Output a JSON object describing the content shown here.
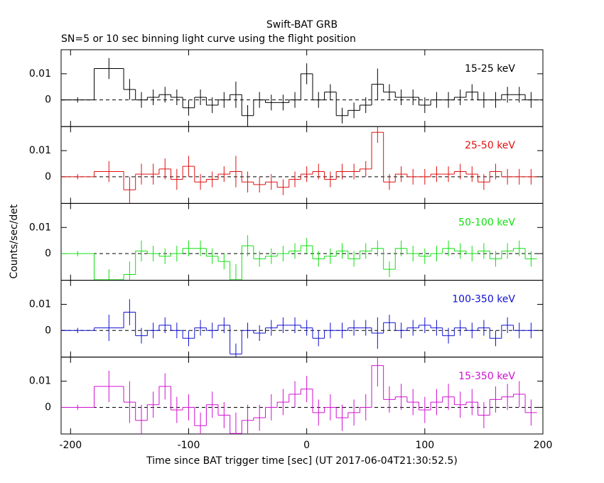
{
  "chart_data": [
    {
      "type": "histogram",
      "title": "Swift-BAT GRB",
      "subtitle": "SN=5 or 10 sec binning light curve using the flight position",
      "name": "15-25 keV",
      "color": "#000000",
      "bins": [
        -208,
        -180,
        -155,
        -145,
        -135,
        -125,
        -115,
        -105,
        -95,
        -85,
        -75,
        -65,
        -55,
        -45,
        -35,
        -25,
        -15,
        -5,
        5,
        15,
        25,
        35,
        45,
        55,
        65,
        75,
        85,
        95,
        105,
        115,
        125,
        135,
        145,
        155,
        165,
        175,
        185,
        195
      ],
      "values": [
        0,
        0.012,
        0.004,
        0,
        0.001,
        0.002,
        0.001,
        -0.003,
        0.001,
        -0.002,
        0,
        0.002,
        -0.006,
        0,
        -0.001,
        -0.001,
        0,
        0.01,
        0,
        0.003,
        -0.006,
        -0.004,
        -0.002,
        0.006,
        0.003,
        0.001,
        0.001,
        -0.002,
        0,
        0,
        0.001,
        0.003,
        0,
        0,
        0.002,
        0.002,
        0
      ],
      "errors": [
        0.001,
        0.004,
        0.004,
        0.003,
        0.003,
        0.003,
        0.003,
        0.003,
        0.003,
        0.003,
        0.003,
        0.005,
        0.004,
        0.003,
        0.003,
        0.003,
        0.003,
        0.004,
        0.003,
        0.003,
        0.003,
        0.003,
        0.003,
        0.006,
        0.003,
        0.003,
        0.003,
        0.003,
        0.003,
        0.003,
        0.003,
        0.003,
        0.003,
        0.003,
        0.003,
        0.003,
        0.003
      ],
      "xlim": [
        -208,
        200
      ],
      "xticks": [
        -200,
        -100,
        0,
        100,
        200
      ],
      "ylim": [
        -0.0102,
        0.0192
      ],
      "yticks": [
        0,
        0.01
      ]
    },
    {
      "type": "histogram",
      "name": "25-50 keV",
      "color": "#e01010",
      "bins": [
        -208,
        -180,
        -155,
        -145,
        -135,
        -125,
        -115,
        -105,
        -95,
        -85,
        -75,
        -65,
        -55,
        -45,
        -35,
        -25,
        -15,
        -5,
        5,
        15,
        25,
        35,
        45,
        55,
        65,
        75,
        85,
        95,
        105,
        115,
        125,
        135,
        145,
        155,
        165,
        175,
        185,
        195
      ],
      "values": [
        0,
        0.002,
        -0.005,
        0.001,
        0.001,
        0.003,
        -0.001,
        0.004,
        -0.002,
        -0.001,
        0.001,
        0.002,
        -0.002,
        -0.003,
        -0.002,
        -0.004,
        -0.001,
        0.001,
        0.002,
        -0.001,
        0.002,
        0.002,
        0.003,
        0.017,
        -0.002,
        0.001,
        0,
        0,
        0.001,
        0.001,
        0.002,
        0.001,
        -0.002,
        0.002,
        0,
        0,
        0
      ],
      "errors": [
        0.001,
        0.004,
        0.005,
        0.004,
        0.004,
        0.004,
        0.004,
        0.004,
        0.003,
        0.003,
        0.003,
        0.006,
        0.004,
        0.003,
        0.003,
        0.003,
        0.003,
        0.003,
        0.003,
        0.003,
        0.003,
        0.003,
        0.003,
        0.004,
        0.003,
        0.003,
        0.003,
        0.003,
        0.003,
        0.003,
        0.003,
        0.003,
        0.003,
        0.003,
        0.003,
        0.003,
        0.003
      ],
      "xlim": [
        -208,
        200
      ],
      "xticks": [
        -200,
        -100,
        0,
        100,
        200
      ],
      "ylim": [
        -0.0102,
        0.0192
      ],
      "yticks": [
        0,
        0.01
      ]
    },
    {
      "type": "histogram",
      "name": "50-100 keV",
      "ylabel": "Counts/sec/det",
      "color": "#10e010",
      "bins": [
        -208,
        -180,
        -155,
        -145,
        -135,
        -125,
        -115,
        -105,
        -95,
        -85,
        -75,
        -65,
        -55,
        -45,
        -35,
        -25,
        -15,
        -5,
        5,
        15,
        25,
        35,
        45,
        55,
        65,
        75,
        85,
        95,
        105,
        115,
        125,
        135,
        145,
        155,
        165,
        175,
        185,
        195
      ],
      "values": [
        0,
        -0.01,
        -0.008,
        0.001,
        0,
        -0.001,
        0,
        0.002,
        0.002,
        -0.001,
        -0.003,
        -0.01,
        0.003,
        -0.002,
        -0.001,
        0,
        0.001,
        0.003,
        -0.002,
        -0.001,
        0.001,
        -0.002,
        0.001,
        0.002,
        -0.006,
        0.002,
        0,
        -0.001,
        0,
        0.002,
        0.001,
        0,
        0.001,
        -0.002,
        0.001,
        0.002,
        -0.002
      ],
      "errors": [
        0.001,
        0.004,
        0.005,
        0.004,
        0.003,
        0.003,
        0.003,
        0.003,
        0.003,
        0.003,
        0.003,
        0.006,
        0.004,
        0.003,
        0.003,
        0.003,
        0.003,
        0.003,
        0.003,
        0.003,
        0.003,
        0.003,
        0.003,
        0.003,
        0.003,
        0.003,
        0.003,
        0.003,
        0.003,
        0.003,
        0.003,
        0.003,
        0.003,
        0.003,
        0.003,
        0.003,
        0.003
      ],
      "xlim": [
        -208,
        200
      ],
      "xticks": [
        -200,
        -100,
        0,
        100,
        200
      ],
      "ylim": [
        -0.0102,
        0.0192
      ],
      "yticks": [
        0,
        0.01
      ]
    },
    {
      "type": "histogram",
      "name": "100-350 keV",
      "color": "#1010d0",
      "bins": [
        -208,
        -180,
        -155,
        -145,
        -135,
        -125,
        -115,
        -105,
        -95,
        -85,
        -75,
        -65,
        -55,
        -45,
        -35,
        -25,
        -15,
        -5,
        5,
        15,
        25,
        35,
        45,
        55,
        65,
        75,
        85,
        95,
        105,
        115,
        125,
        135,
        145,
        155,
        165,
        175,
        185,
        195
      ],
      "values": [
        0,
        0.001,
        0.007,
        -0.002,
        0,
        0.002,
        0,
        -0.003,
        0.001,
        0,
        0.002,
        -0.009,
        0,
        -0.001,
        0.001,
        0.002,
        0.002,
        0.001,
        -0.003,
        0,
        0,
        0.001,
        0.001,
        -0.001,
        0.003,
        0,
        0.001,
        0.002,
        0.001,
        -0.002,
        0.001,
        0,
        0.001,
        -0.003,
        0.002,
        0,
        0
      ],
      "errors": [
        0.001,
        0.005,
        0.005,
        0.003,
        0.003,
        0.003,
        0.003,
        0.003,
        0.003,
        0.003,
        0.003,
        0.004,
        0.003,
        0.003,
        0.003,
        0.003,
        0.003,
        0.003,
        0.003,
        0.003,
        0.003,
        0.003,
        0.003,
        0.006,
        0.003,
        0.003,
        0.003,
        0.003,
        0.003,
        0.003,
        0.003,
        0.003,
        0.003,
        0.003,
        0.003,
        0.003,
        0.003
      ],
      "xlim": [
        -208,
        200
      ],
      "xticks": [
        -200,
        -100,
        0,
        100,
        200
      ],
      "ylim": [
        -0.0102,
        0.0192
      ],
      "yticks": [
        0,
        0.01
      ]
    },
    {
      "type": "histogram",
      "name": "15-350 keV",
      "xlabel": "Time since BAT trigger time [sec] (UT 2017-06-04T21:30:52.5)",
      "color": "#d010d0",
      "bins": [
        -208,
        -180,
        -155,
        -145,
        -135,
        -125,
        -115,
        -105,
        -95,
        -85,
        -75,
        -65,
        -55,
        -45,
        -35,
        -25,
        -15,
        -5,
        5,
        15,
        25,
        35,
        45,
        55,
        65,
        75,
        85,
        95,
        105,
        115,
        125,
        135,
        145,
        155,
        165,
        175,
        185,
        195
      ],
      "values": [
        0,
        0.008,
        0.002,
        -0.005,
        0.001,
        0.008,
        -0.001,
        0,
        -0.007,
        0.001,
        -0.003,
        -0.01,
        -0.005,
        -0.004,
        0,
        0.002,
        0.005,
        0.007,
        -0.002,
        0,
        -0.004,
        -0.002,
        0,
        0.016,
        0.003,
        0.004,
        0.002,
        -0.001,
        0.002,
        0.004,
        0.001,
        0.002,
        -0.003,
        0.003,
        0.004,
        0.005,
        -0.002
      ],
      "errors": [
        0.001,
        0.006,
        0.008,
        0.006,
        0.005,
        0.005,
        0.005,
        0.005,
        0.005,
        0.005,
        0.005,
        0.008,
        0.006,
        0.005,
        0.005,
        0.005,
        0.005,
        0.005,
        0.005,
        0.005,
        0.005,
        0.005,
        0.005,
        0.008,
        0.005,
        0.005,
        0.005,
        0.005,
        0.005,
        0.005,
        0.005,
        0.005,
        0.005,
        0.005,
        0.005,
        0.005,
        0.005
      ],
      "xlim": [
        -208,
        200
      ],
      "xticks": [
        -200,
        -100,
        0,
        100,
        200
      ],
      "ylim": [
        -0.0102,
        0.0192
      ],
      "yticks": [
        0,
        0.01
      ]
    }
  ]
}
